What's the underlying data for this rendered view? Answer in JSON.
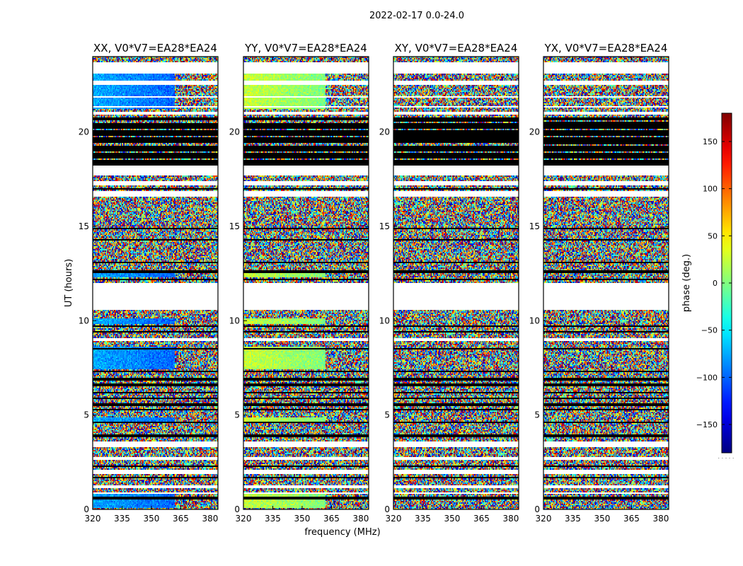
{
  "suptitle": "2022-02-17 0.0-24.0",
  "shared": {
    "xlabel": "frequency (MHz)",
    "ylabel": "UT (hours)",
    "colorbar_label": "phase (deg.)",
    "colorbar_extra": ". . . . ."
  },
  "colors": {
    "colormap": "jet",
    "flag_white": "#ffffff",
    "flag_black": "#000000"
  },
  "chart_data": [
    {
      "type": "heatmap",
      "title": "XX, V0*V7=EA28*EA24",
      "xlabel": "frequency (MHz)",
      "ylabel": "UT (hours)",
      "xlim": [
        320,
        384
      ],
      "ylim": [
        0,
        24
      ],
      "xticks": [
        320,
        335,
        350,
        365,
        380
      ],
      "yticks": [
        0,
        5,
        10,
        15,
        20
      ],
      "value": "phase (deg.)",
      "coherent_phase": -80
    },
    {
      "type": "heatmap",
      "title": "YY, V0*V7=EA28*EA24",
      "xlabel": "frequency (MHz)",
      "ylabel": "",
      "xlim": [
        320,
        384
      ],
      "ylim": [
        0,
        24
      ],
      "xticks": [
        320,
        335,
        350,
        365,
        380
      ],
      "yticks": [
        0,
        5,
        10,
        15,
        20
      ],
      "value": "phase (deg.)",
      "coherent_phase": 20
    },
    {
      "type": "heatmap",
      "title": "XY, V0*V7=EA28*EA24",
      "xlabel": "",
      "ylabel": "",
      "xlim": [
        320,
        384
      ],
      "ylim": [
        0,
        24
      ],
      "xticks": [
        320,
        335,
        350,
        365,
        380
      ],
      "yticks": [
        0,
        5,
        10,
        15,
        20
      ],
      "value": "phase (deg.)",
      "coherent_phase": null
    },
    {
      "type": "heatmap",
      "title": "YX, V0*V7=EA28*EA24",
      "xlabel": "",
      "ylabel": "",
      "xlim": [
        320,
        384
      ],
      "ylim": [
        0,
        24
      ],
      "xticks": [
        320,
        335,
        350,
        365,
        380
      ],
      "yticks": [
        0,
        5,
        10,
        15,
        20
      ],
      "value": "phase (deg.)",
      "coherent_phase": null
    }
  ],
  "flags": {
    "white_bands_hours": [
      [
        23.1,
        23.7
      ],
      [
        22.5,
        22.7
      ],
      [
        21.8,
        21.9
      ],
      [
        21.3,
        21.4
      ],
      [
        20.9,
        21.1
      ],
      [
        17.7,
        18.2
      ],
      [
        17.2,
        17.4
      ],
      [
        16.6,
        16.9
      ],
      [
        11.8,
        12.0
      ],
      [
        10.6,
        11.8
      ],
      [
        8.9,
        9.1
      ],
      [
        3.3,
        3.6
      ],
      [
        2.6,
        2.8
      ],
      [
        1.9,
        2.1
      ],
      [
        1.1,
        1.3
      ],
      [
        0.8,
        0.9
      ]
    ],
    "black_block_hours": [
      18.2,
      20.8
    ],
    "black_line_hours": [
      17.35,
      17.0,
      14.9,
      14.3,
      13.1,
      12.6,
      12.2,
      9.7,
      9.4,
      8.5,
      7.3,
      6.9,
      6.6,
      6.2,
      5.9,
      5.55,
      5.3,
      4.6,
      3.9,
      2.3,
      1.7,
      0.6
    ]
  },
  "colorbar": {
    "range": [
      -180,
      180
    ],
    "ticks": [
      150,
      100,
      50,
      0,
      -50,
      -100,
      -150
    ],
    "tick_labels": [
      "150",
      "100",
      "50",
      "0",
      "−50",
      "−100",
      "−150"
    ]
  }
}
